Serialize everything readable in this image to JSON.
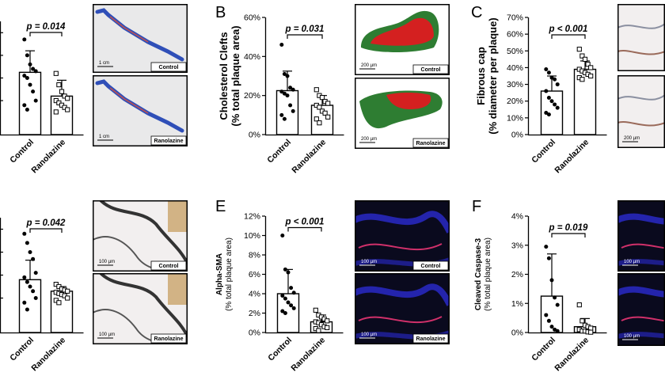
{
  "panel_letters": [
    "B",
    "C",
    "E",
    "F"
  ],
  "chart_data": [
    {
      "id": "A",
      "type": "bar",
      "title": "",
      "ylabel": "",
      "ylim": [
        0,
        100
      ],
      "yticks": [],
      "categories": [
        "Control",
        "Ranolazine"
      ],
      "values": [
        55,
        34
      ],
      "errors": [
        19,
        14
      ],
      "pvalue": "p = 0.014",
      "points": [
        [
          84,
          70,
          62,
          58,
          56,
          52,
          50,
          44,
          38,
          30,
          26,
          22
        ],
        [
          54,
          44,
          38,
          34,
          32,
          30,
          28,
          26,
          24,
          22,
          20
        ]
      ]
    },
    {
      "id": "B",
      "type": "bar",
      "title": "",
      "ylabel": "Cholesterol Clefts (% total plaque area)",
      "ylim": [
        0,
        60
      ],
      "yticks": [
        "0%",
        "20%",
        "40%",
        "60%"
      ],
      "categories": [
        "Control",
        "Ranolazine"
      ],
      "values": [
        22.5,
        15
      ],
      "errors": [
        10,
        5
      ],
      "pvalue": "p = 0.031",
      "points": [
        [
          46,
          31,
          30,
          24,
          23,
          22,
          21,
          20,
          15,
          12,
          10,
          8
        ],
        [
          23,
          20,
          19,
          17,
          16,
          15,
          14,
          12,
          11,
          9,
          8,
          6
        ]
      ]
    },
    {
      "id": "C",
      "type": "bar",
      "title": "",
      "ylabel": "Fibrous cap (% diameter per plaque)",
      "ylim": [
        0,
        70
      ],
      "yticks": [
        "0%",
        "10%",
        "20%",
        "30%",
        "40%",
        "50%",
        "60%",
        "70%"
      ],
      "categories": [
        "Control",
        "Ranolazine"
      ],
      "values": [
        26,
        39
      ],
      "errors": [
        9,
        5
      ],
      "pvalue": "p < 0.001",
      "points": [
        [
          39,
          37,
          34,
          33,
          30,
          26,
          22,
          20,
          18,
          16,
          13,
          12
        ],
        [
          51,
          47,
          45,
          42,
          40,
          39,
          38,
          37,
          36,
          35,
          34,
          33
        ]
      ]
    },
    {
      "id": "D",
      "type": "bar",
      "title": "",
      "ylabel": "",
      "ylim": [
        0,
        100
      ],
      "yticks": [],
      "categories": [
        "Control",
        "Ranolazine"
      ],
      "values": [
        46,
        36
      ],
      "errors": [
        17,
        4
      ],
      "pvalue": "p = 0.042",
      "points": [
        [
          86,
          78,
          70,
          64,
          52,
          48,
          44,
          40,
          36,
          30,
          26,
          20
        ],
        [
          42,
          40,
          38,
          37,
          36,
          35,
          34,
          33,
          32,
          30,
          28,
          26
        ]
      ]
    },
    {
      "id": "E",
      "type": "bar",
      "title": "",
      "ylabel": "Alpha-SMA (% total plaque area)",
      "ylim": [
        0,
        12
      ],
      "yticks": [
        "0%",
        "2%",
        "4%",
        "6%",
        "8%",
        "10%",
        "12%"
      ],
      "categories": [
        "Control",
        "Ranolazine"
      ],
      "values": [
        4.0,
        1.1
      ],
      "errors": [
        2.5,
        0.7
      ],
      "pvalue": "p < 0.001",
      "points": [
        [
          10.0,
          6.5,
          6.2,
          4.6,
          4.1,
          3.8,
          3.5,
          3.1,
          2.8,
          2.5,
          2.2,
          2.0
        ],
        [
          2.3,
          1.8,
          1.6,
          1.4,
          1.2,
          1.1,
          1.0,
          0.8,
          0.6,
          0.5,
          0.4,
          0.2
        ]
      ]
    },
    {
      "id": "F",
      "type": "bar",
      "title": "",
      "ylabel": "Cleaved Caspase-3 (% total plaque area)",
      "ylim": [
        0,
        4
      ],
      "yticks": [
        "0%",
        "1%",
        "2%",
        "3%",
        "4%"
      ],
      "categories": [
        "Control",
        "Ranolazine"
      ],
      "values": [
        1.25,
        0.2
      ],
      "errors": [
        1.45,
        0.28
      ],
      "pvalue": "p = 0.019",
      "points": [
        [
          2.95,
          2.55,
          1.8,
          1.2,
          0.95,
          0.6,
          0.4,
          0.2,
          0.1,
          0.05
        ],
        [
          0.95,
          0.4,
          0.25,
          0.2,
          0.15,
          0.1,
          0.05,
          0.05,
          0.02,
          0.01
        ]
      ]
    }
  ],
  "micrographs": [
    {
      "id": "A-top",
      "label": "Control",
      "scale": "1 cm",
      "kind": "vessel"
    },
    {
      "id": "A-bottom",
      "label": "Ranolazine",
      "scale": "1 cm",
      "kind": "vessel"
    },
    {
      "id": "B-top",
      "label": "Control",
      "scale": "200 µm",
      "kind": "plaque-red"
    },
    {
      "id": "B-bottom",
      "label": "Ranolazine",
      "scale": "200 µm",
      "kind": "plaque-green"
    },
    {
      "id": "C-top",
      "label": "",
      "scale": "",
      "kind": "histo-light"
    },
    {
      "id": "C-bottom",
      "label": "",
      "scale": "200 µm",
      "kind": "histo-light"
    },
    {
      "id": "D-top",
      "label": "Control",
      "scale": "100 µm",
      "kind": "elastin"
    },
    {
      "id": "D-bottom",
      "label": "Ranolazine",
      "scale": "100 µm",
      "kind": "elastin"
    },
    {
      "id": "E-top",
      "label": "Control",
      "scale": "100 µm",
      "kind": "fluor"
    },
    {
      "id": "E-bottom",
      "label": "Ranolazine",
      "scale": "100 µm",
      "kind": "fluor"
    },
    {
      "id": "F-top",
      "label": "",
      "scale": "100 µm",
      "kind": "fluor-edge"
    },
    {
      "id": "F-bottom",
      "label": "",
      "scale": "100 µm",
      "kind": "fluor-edge"
    }
  ],
  "colors": {
    "ranolazine_bar": "#000000",
    "control_bar": "#ffffff",
    "vessel_blue": "#2f4fb8",
    "plaque_red": "#d42020",
    "plaque_green": "#2e7d32",
    "fluor_bg": "#0a0a1e",
    "fluor_blue": "#2a2ad0",
    "fluor_red": "#d0306a"
  }
}
